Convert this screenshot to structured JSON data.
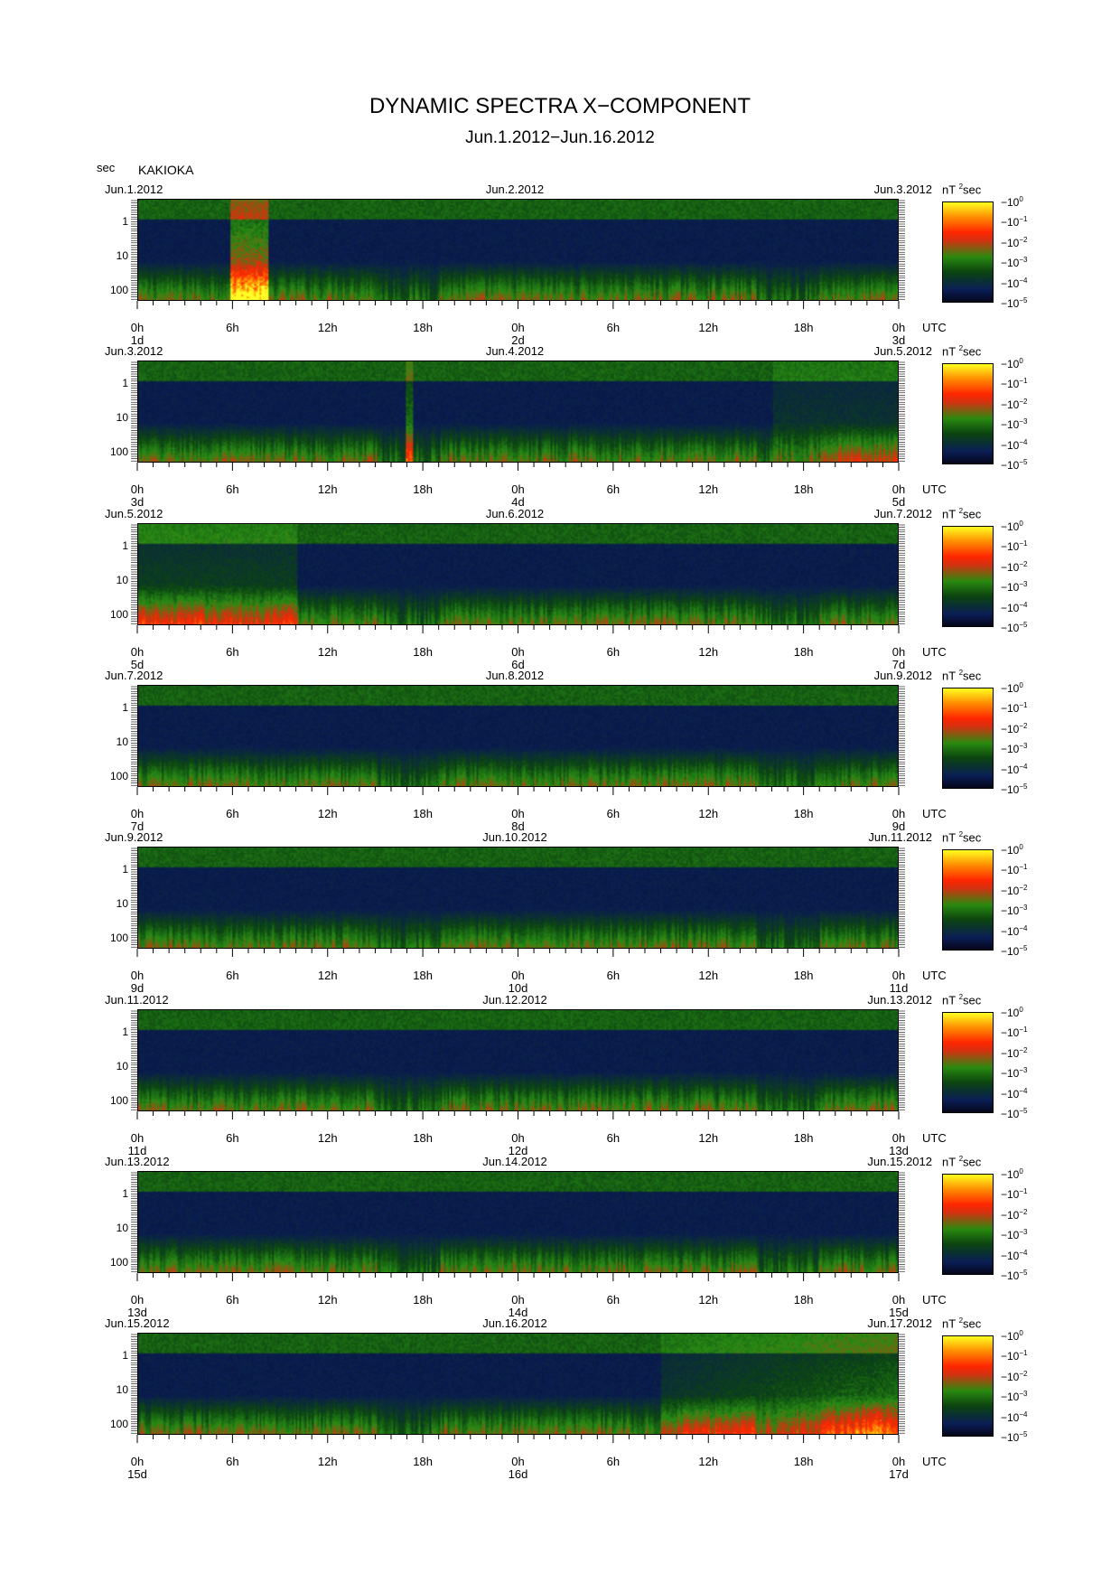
{
  "chart_data": {
    "type": "heatmap",
    "title": "DYNAMIC SPECTRA X−COMPONENT",
    "subtitle": "Jun.1.2012−Jun.16.2012",
    "station": "KAKIOKA",
    "ylabel": "sec",
    "yscale": "log",
    "yticks": [
      "1",
      "10",
      "100"
    ],
    "xticks": [
      "0h",
      "6h",
      "12h",
      "18h",
      "0h",
      "6h",
      "12h",
      "18h",
      "0h"
    ],
    "x_unit": "UTC",
    "colorbar": {
      "unit": "nT",
      "unit_exp": "2",
      "unit_suffix": "sec",
      "scale": "log",
      "range": [
        1e-05,
        1
      ],
      "ticks": [
        {
          "base": "10",
          "exp": "0"
        },
        {
          "base": "10",
          "exp": "−1"
        },
        {
          "base": "10",
          "exp": "−2"
        },
        {
          "base": "10",
          "exp": "−3"
        },
        {
          "base": "10",
          "exp": "−4"
        },
        {
          "base": "10",
          "exp": "−5"
        }
      ]
    },
    "panels": [
      {
        "date_start": "Jun.1.2012",
        "date_mid": "Jun.2.2012",
        "date_end": "Jun.3.2012",
        "day_labels": [
          "1d",
          "2d",
          "3d"
        ],
        "features": "Strong broadband burst near 6h–8h on Jun.1 reaching 10^0; red enhancements at long periods"
      },
      {
        "date_start": "Jun.3.2012",
        "date_mid": "Jun.4.2012",
        "date_end": "Jun.5.2012",
        "day_labels": [
          "3d",
          "4d",
          "5d"
        ],
        "features": "Spike near 17h on Jun.3; elevated power late on Jun.4"
      },
      {
        "date_start": "Jun.5.2012",
        "date_mid": "Jun.6.2012",
        "date_end": "Jun.7.2012",
        "day_labels": [
          "5d",
          "6d",
          "7d"
        ],
        "features": "Widespread red power at long periods early Jun.5; horizontal line near 1 sec"
      },
      {
        "date_start": "Jun.7.2012",
        "date_mid": "Jun.8.2012",
        "date_end": "Jun.9.2012",
        "day_labels": [
          "7d",
          "8d",
          "9d"
        ],
        "features": "Moderate red at long periods early Jun.7 and around 9h–10h Jun.8"
      },
      {
        "date_start": "Jun.9.2012",
        "date_mid": "Jun.10.2012",
        "date_end": "Jun.11.2012",
        "day_labels": [
          "9d",
          "10d",
          "11d"
        ],
        "features": "Quiet with green band at short periods near 15h Jun.9"
      },
      {
        "date_start": "Jun.11.2012",
        "date_mid": "Jun.12.2012",
        "date_end": "Jun.13.2012",
        "day_labels": [
          "11d",
          "12d",
          "13d"
        ],
        "features": "Quiet; low-level long-period activity"
      },
      {
        "date_start": "Jun.13.2012",
        "date_mid": "Jun.14.2012",
        "date_end": "Jun.15.2012",
        "day_labels": [
          "13d",
          "14d",
          "15d"
        ],
        "features": "Quiet; weak red near 6h–9h Jun.13"
      },
      {
        "date_start": "Jun.15.2012",
        "date_mid": "Jun.16.2012",
        "date_end": "Jun.17.2012",
        "day_labels": [
          "15d",
          "16d",
          "17d"
        ],
        "features": "Strong activity from ~10h on Jun.16 increasing to yellow near end of day"
      }
    ]
  },
  "colors": {
    "low": "#05061a",
    "mid_low": "#0b4410",
    "mid": "#2a8a10",
    "high": "#ff2600",
    "max": "#ffff20"
  }
}
